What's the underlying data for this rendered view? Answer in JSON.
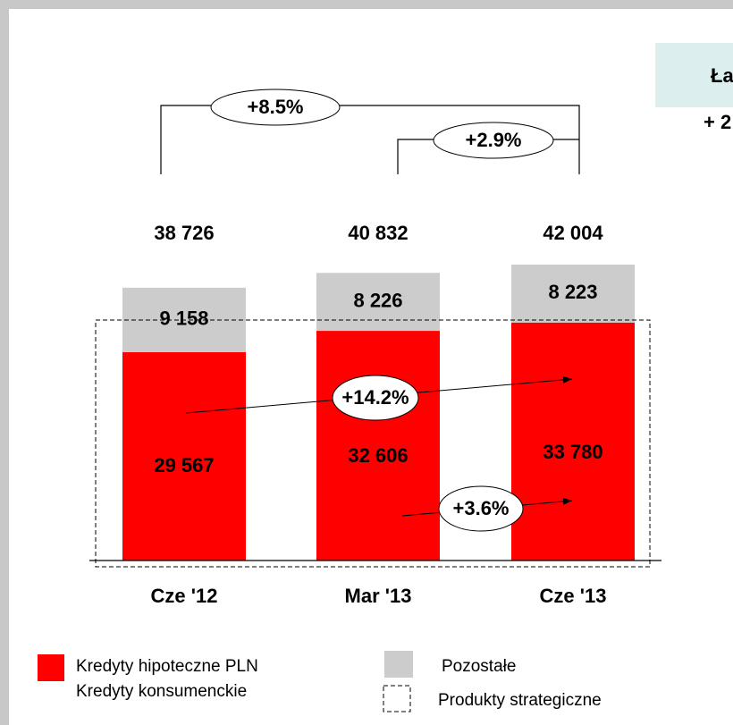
{
  "chart_data": {
    "type": "bar",
    "stacked": true,
    "categories": [
      "Cze '12",
      "Mar '13",
      "Cze '13"
    ],
    "series": [
      {
        "name": "Kredyty hipoteczne PLN",
        "color": "#ff0000",
        "values": [
          29567,
          32606,
          33780
        ],
        "value_labels": [
          "29 567",
          "32 606",
          "33 780"
        ]
      },
      {
        "name": "Pozostałe",
        "color": "#cccccc",
        "values": [
          9158,
          8226,
          8223
        ],
        "value_labels": [
          "9 158",
          "8 226",
          "8 223"
        ]
      }
    ],
    "total_labels": [
      "38 726",
      "40 832",
      "42 004"
    ],
    "legend_note": "Kredyty konsumenckie",
    "dashed_box_label": "Produkty strategiczne",
    "annotations": [
      "+8.5%",
      "+2.9%",
      "+14.2%",
      "+3.6%"
    ],
    "side_box": [
      "Ła",
      "+ 2"
    ]
  }
}
